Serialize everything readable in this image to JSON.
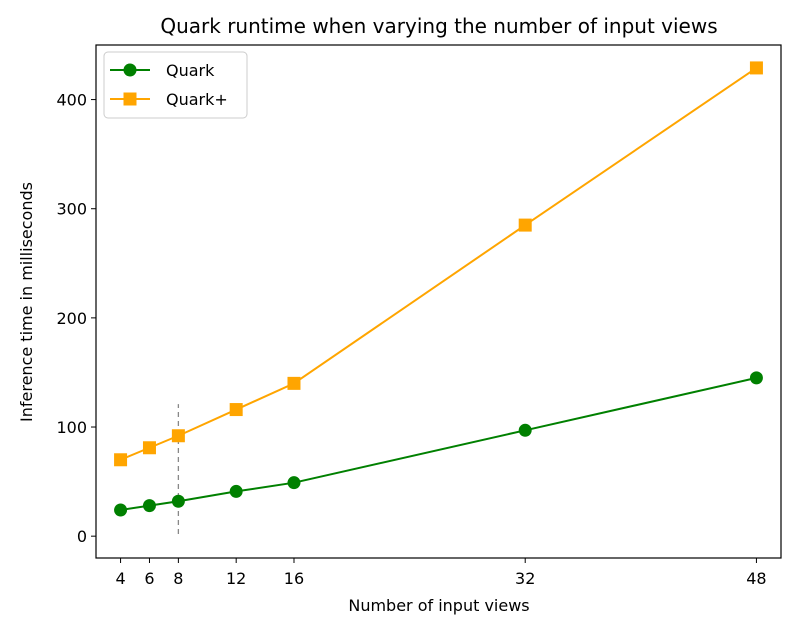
{
  "chart_data": {
    "type": "line",
    "title": "Quark runtime when varying the number of input views",
    "xlabel": "Number of input views",
    "ylabel": "Inference time in milliseconds",
    "x": [
      4,
      6,
      8,
      12,
      16,
      32,
      48
    ],
    "xticks": [
      4,
      6,
      8,
      12,
      16,
      32,
      48
    ],
    "yticks": [
      0,
      100,
      200,
      300,
      400
    ],
    "xlim": [
      2.3,
      49.7
    ],
    "ylim": [
      -20,
      450
    ],
    "legend_position": "top-left",
    "grid": false,
    "series": [
      {
        "name": "Quark",
        "marker": "circle",
        "color": "#008000",
        "values": [
          24,
          28,
          32,
          41,
          49,
          97,
          145
        ]
      },
      {
        "name": "Quark+",
        "marker": "square",
        "color": "#ffa500",
        "values": [
          70,
          81,
          92,
          116,
          140,
          285,
          429
        ]
      }
    ],
    "annotations": [
      {
        "type": "vline",
        "x": 8,
        "y_from": 2,
        "y_to": 121,
        "style": "dashed",
        "color": "#888888"
      }
    ]
  }
}
